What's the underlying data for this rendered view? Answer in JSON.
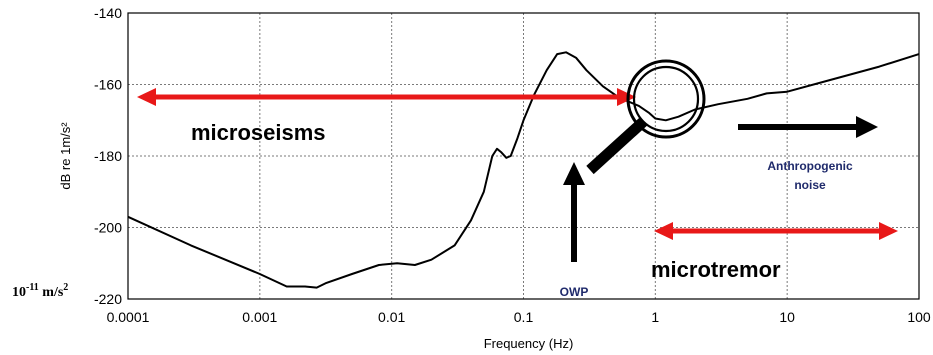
{
  "chart_data": {
    "type": "line",
    "title": "",
    "xlabel": "Frequency (Hz)",
    "ylabel": "dB re 1m/s²",
    "x_scale": "log",
    "xlim": [
      0.0001,
      100
    ],
    "ylim": [
      -220,
      -140
    ],
    "grid": true,
    "x_ticks": [
      "0.0001",
      "0.001",
      "0.01",
      "0.1",
      "1",
      "10",
      "100"
    ],
    "y_ticks": [
      "-140",
      "-160",
      "-180",
      "-200",
      "-220"
    ],
    "series": [
      {
        "color": "#000000",
        "x": [
          0.0001,
          0.0003,
          0.001,
          0.0016,
          0.0022,
          0.0027,
          0.0032,
          0.005,
          0.008,
          0.011,
          0.015,
          0.02,
          0.03,
          0.04,
          0.05,
          0.058,
          0.063,
          0.068,
          0.074,
          0.08,
          0.09,
          0.1,
          0.12,
          0.15,
          0.18,
          0.21,
          0.25,
          0.3,
          0.4,
          0.5,
          0.6,
          0.75,
          0.9,
          1.0,
          1.2,
          1.5,
          2,
          3,
          5,
          7,
          10,
          20,
          50,
          100
        ],
        "y": [
          -197,
          -205,
          -213,
          -216.5,
          -216.5,
          -216.8,
          -215.5,
          -213,
          -210.5,
          -210,
          -210.5,
          -209,
          -205,
          -198,
          -190,
          -180,
          -178,
          -179,
          -180.5,
          -180,
          -175,
          -170,
          -163,
          -156,
          -151.5,
          -151,
          -152.5,
          -156,
          -160.5,
          -163,
          -164.5,
          -166,
          -168,
          -169.5,
          -170,
          -169,
          -167,
          -165.5,
          -164,
          -162.5,
          -162,
          -159,
          -155,
          -151.5
        ]
      }
    ],
    "annotations": {
      "microseisms": "microseisms",
      "microtremor": "microtremor",
      "anthropogenic_line1": "Anthropogenic",
      "anthropogenic_line2": "noise",
      "owp": "OWP",
      "corner_label_base": "10",
      "corner_label_exp": "-11",
      "corner_label_unit": " m/s",
      "corner_label_unit_exp": "2"
    },
    "colors": {
      "red_arrow": "#e81818",
      "black": "#000000",
      "navy_text": "#1f2a6b",
      "grid": "#7a7a7a"
    }
  }
}
